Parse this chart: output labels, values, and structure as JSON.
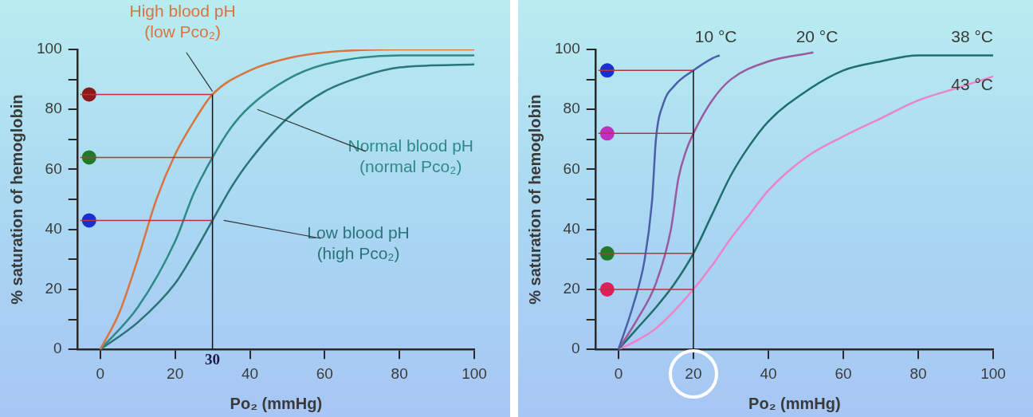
{
  "chart_data": [
    {
      "type": "line",
      "xlabel": "Po₂ (mmHg)",
      "ylabel": "% saturation of hemoglobin",
      "xlim": [
        -6,
        100
      ],
      "ylim": [
        0,
        100
      ],
      "xticks": [
        0,
        20,
        40,
        60,
        80,
        100
      ],
      "yticks": [
        0,
        {
          "value": 10,
          "label": null
        },
        20,
        {
          "value": 30,
          "label": null
        },
        40,
        {
          "value": 50,
          "label": null
        },
        60,
        {
          "value": 70,
          "label": null
        },
        80,
        {
          "value": 90,
          "label": null
        },
        100
      ],
      "grid": false,
      "legend": false,
      "marker": "none",
      "series": [
        {
          "name": "High blood pH\n(low Pco₂)",
          "color": "#d9733f",
          "x": [
            0,
            5,
            10,
            15,
            20,
            25,
            30,
            40,
            50,
            60,
            80,
            100
          ],
          "values": [
            0,
            12,
            30,
            50,
            65,
            76,
            85,
            93,
            97,
            99,
            100,
            100
          ]
        },
        {
          "name": "Normal blood pH\n(normal Pco₂)",
          "color": "#2e8a86",
          "x": [
            0,
            10,
            20,
            25,
            30,
            35,
            40,
            50,
            60,
            80,
            100
          ],
          "values": [
            0,
            14,
            36,
            52,
            64,
            74,
            81,
            90,
            95,
            98,
            98
          ]
        },
        {
          "name": "Low blood pH\n(high Pco₂)",
          "color": "#2a7479",
          "x": [
            0,
            10,
            20,
            25,
            30,
            35,
            40,
            50,
            60,
            70,
            80,
            100
          ],
          "values": [
            0,
            9,
            22,
            32,
            43,
            54,
            63,
            77,
            86,
            91,
            94,
            95
          ]
        },
        {
          "type": "scatter",
          "marker": "circle",
          "x": [
            -3,
            -3,
            -3
          ],
          "values": [
            85,
            64,
            43
          ],
          "colors": [
            "#8b1a1a",
            "#1f7a2a",
            "#1a2fd0"
          ]
        }
      ],
      "ref_lines": [
        {
          "axis": "x",
          "value": 30,
          "label": "30",
          "color": "#111111"
        },
        {
          "axis": "y",
          "value": 85,
          "label": null,
          "color": "#c0303a"
        },
        {
          "axis": "y",
          "value": 64,
          "label": null,
          "color": "#c0303a"
        },
        {
          "axis": "y",
          "value": 43,
          "label": null,
          "color": "#c0303a"
        }
      ]
    },
    {
      "type": "line",
      "xlabel": "Po₂ (mmHg)",
      "ylabel": "% saturation of hemoglobin",
      "xlim": [
        -6,
        100
      ],
      "ylim": [
        0,
        100
      ],
      "xticks": [
        0,
        20,
        40,
        60,
        80,
        100
      ],
      "yticks": [
        0,
        {
          "value": 10,
          "label": null
        },
        20,
        {
          "value": 30,
          "label": null
        },
        40,
        {
          "value": 50,
          "label": null
        },
        60,
        {
          "value": 70,
          "label": null
        },
        80,
        {
          "value": 90,
          "label": null
        },
        100
      ],
      "grid": false,
      "legend": false,
      "marker": "none",
      "series": [
        {
          "name": "10 °C",
          "color": "#4a5fa8",
          "x": [
            0,
            4,
            7,
            9,
            10,
            12,
            15,
            20,
            25,
            27
          ],
          "values": [
            0,
            15,
            30,
            50,
            70,
            82,
            88,
            93,
            97,
            98
          ]
        },
        {
          "name": "20 °C",
          "color": "#9a5aa0",
          "x": [
            0,
            5,
            10,
            14,
            16,
            18,
            20,
            25,
            30,
            40,
            52
          ],
          "values": [
            0,
            10,
            22,
            40,
            57,
            66,
            72,
            83,
            90,
            96,
            99
          ]
        },
        {
          "name": "38 °C",
          "color": "#1f6e6e",
          "x": [
            0,
            5,
            10,
            15,
            20,
            25,
            30,
            35,
            40,
            50,
            60,
            70,
            80,
            100
          ],
          "values": [
            0,
            7,
            14,
            22,
            32,
            45,
            58,
            68,
            76,
            86,
            93,
            96,
            98,
            98
          ]
        },
        {
          "name": "43 °C",
          "color": "#ee82c8",
          "x": [
            0,
            5,
            10,
            15,
            20,
            25,
            30,
            35,
            40,
            50,
            60,
            70,
            80,
            90,
            100
          ],
          "values": [
            0,
            3,
            7,
            13,
            20,
            28,
            37,
            45,
            53,
            64,
            71,
            77,
            83,
            87,
            91
          ]
        },
        {
          "type": "scatter",
          "marker": "circle",
          "x": [
            -3,
            -3,
            -3,
            -3
          ],
          "values": [
            93,
            72,
            32,
            20
          ],
          "colors": [
            "#1a2fd0",
            "#c030c0",
            "#1f7a2a",
            "#e0205a"
          ]
        }
      ],
      "ref_lines": [
        {
          "axis": "x",
          "value": 20,
          "label": null,
          "color": "#111111"
        },
        {
          "axis": "y",
          "value": 93,
          "label": null,
          "color": "#c0303a"
        },
        {
          "axis": "y",
          "value": 72,
          "label": null,
          "color": "#c0303a"
        },
        {
          "axis": "y",
          "value": 32,
          "label": null,
          "color": "#c0303a"
        },
        {
          "axis": "y",
          "value": 20,
          "label": null,
          "color": "#c0303a"
        }
      ]
    }
  ]
}
